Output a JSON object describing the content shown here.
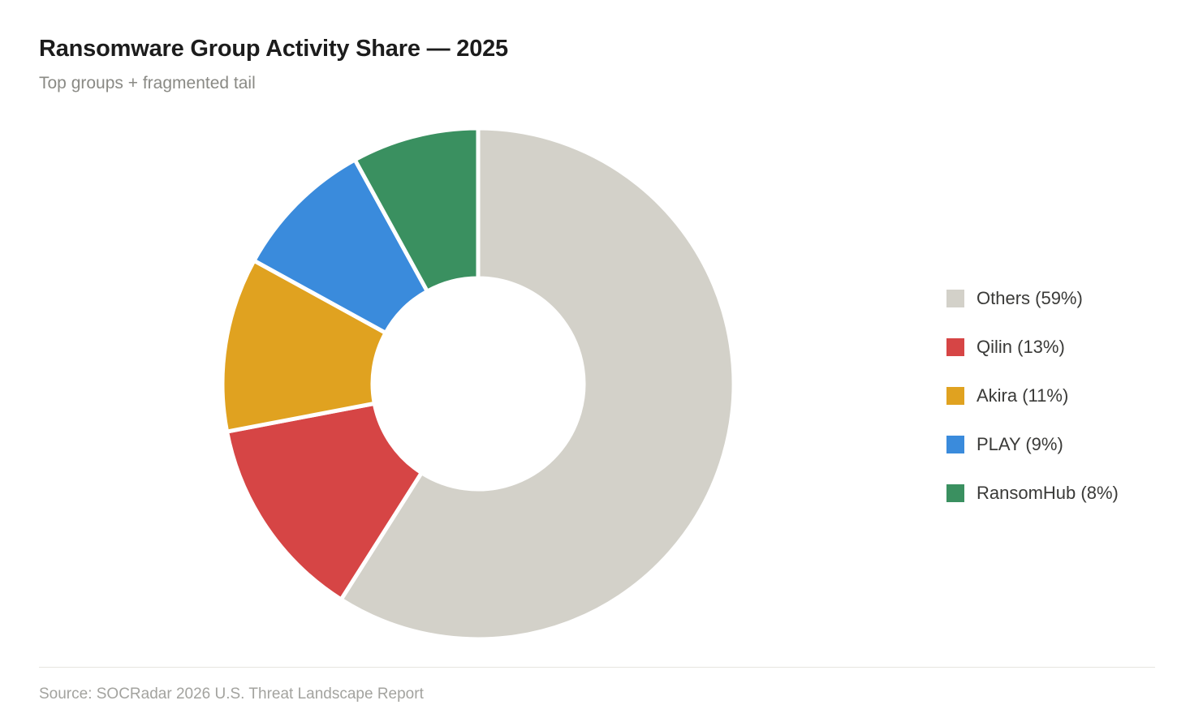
{
  "header": {
    "title": "Ransomware Group Activity Share — 2025",
    "subtitle": "Top groups + fragmented tail"
  },
  "footer": {
    "source": "Source: SOCRadar 2026 U.S. Threat Landscape Report"
  },
  "legend": {
    "items": [
      {
        "label": "Others (59%)",
        "color": "#d3d1c9"
      },
      {
        "label": "Qilin (13%)",
        "color": "#d64545"
      },
      {
        "label": "Akira (11%)",
        "color": "#e0a220"
      },
      {
        "label": "PLAY (9%)",
        "color": "#3a8bdc"
      },
      {
        "label": "RansomHub (8%)",
        "color": "#3a9060"
      }
    ]
  },
  "chart_data": {
    "type": "pie",
    "variant": "donut",
    "title": "Ransomware Group Activity Share — 2025",
    "subtitle": "Top groups + fragmented tail",
    "categories": [
      "Others",
      "Qilin",
      "Akira",
      "PLAY",
      "RansomHub"
    ],
    "values": [
      59,
      13,
      11,
      9,
      8
    ],
    "unit": "%",
    "colors": [
      "#d3d1c9",
      "#d64545",
      "#e0a220",
      "#3a8bdc",
      "#3a9060"
    ],
    "start_angle": "12 o'clock",
    "direction": "clockwise",
    "legend_position": "right",
    "source": "Source: SOCRadar 2026 U.S. Threat Landscape Report"
  }
}
